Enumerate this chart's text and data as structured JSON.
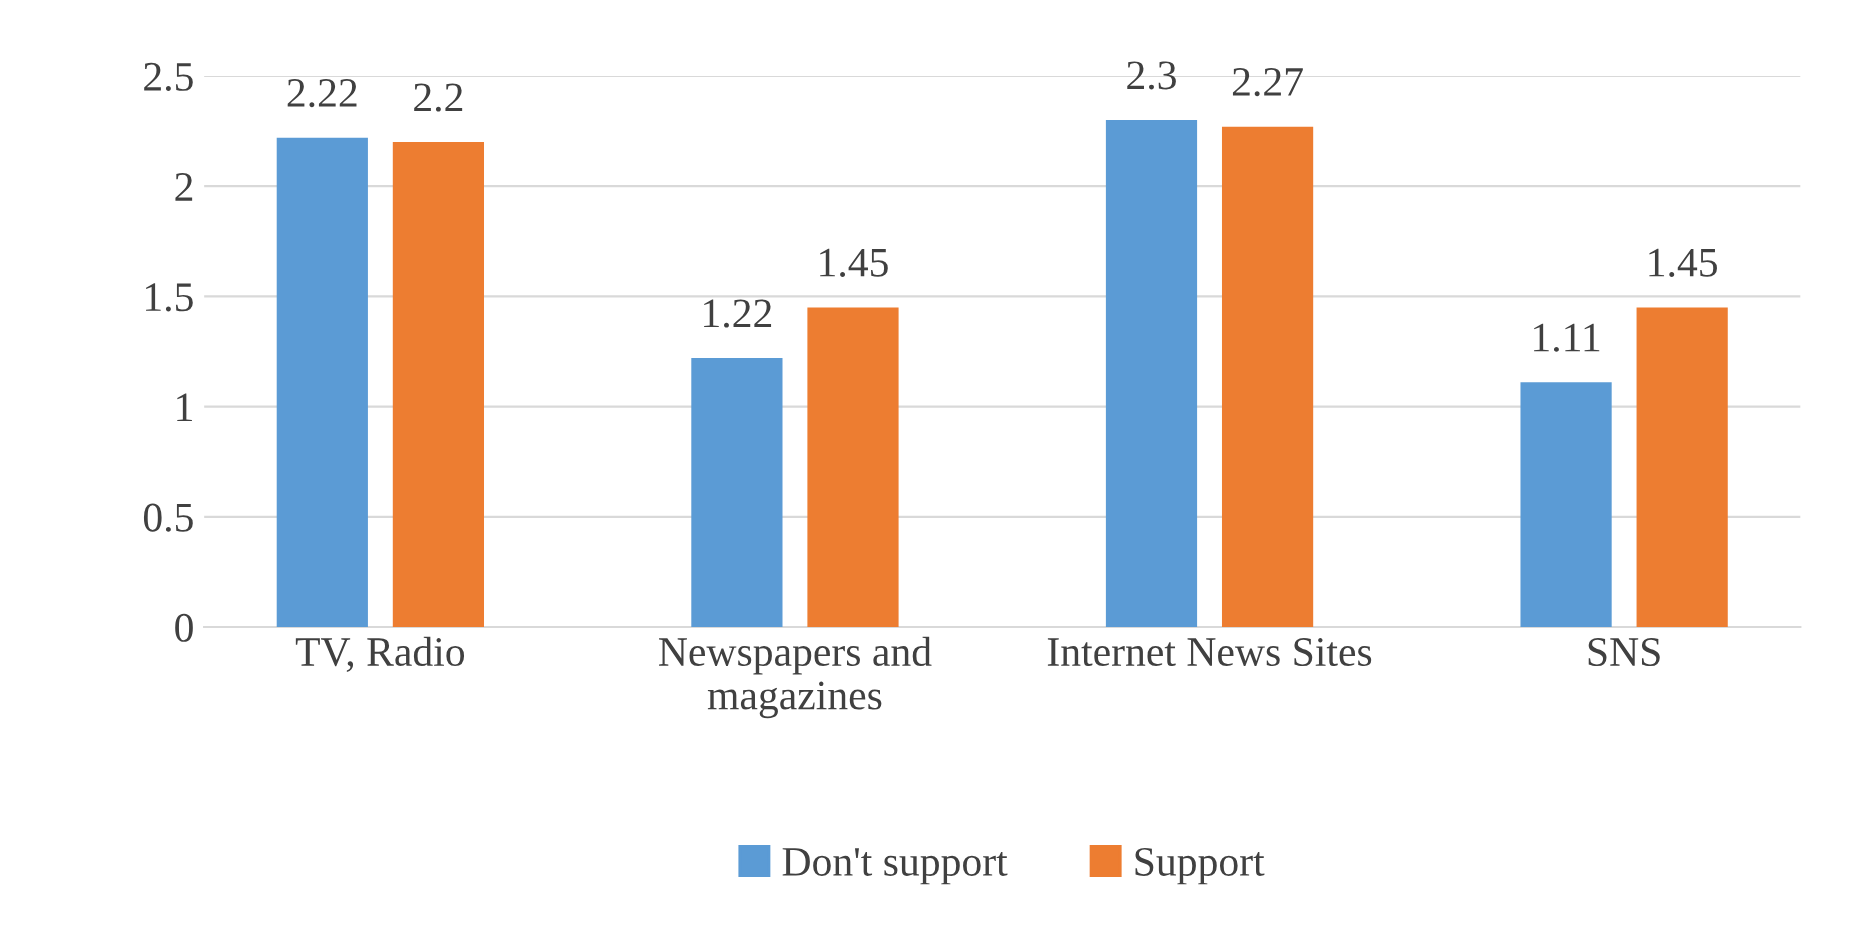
{
  "chart_data": {
    "type": "bar",
    "categories": [
      "TV, Radio",
      "Newspapers and\nmagazines",
      "Internet News Sites",
      "SNS"
    ],
    "series": [
      {
        "name": "Don't support",
        "color": "#5b9bd5",
        "values": [
          2.22,
          1.22,
          2.3,
          1.11
        ]
      },
      {
        "name": "Support",
        "color": "#ed7d31",
        "values": [
          2.2,
          1.45,
          2.27,
          1.45
        ]
      }
    ],
    "ylim": [
      0,
      2.5
    ],
    "yticks": [
      0,
      0.5,
      1,
      1.5,
      2,
      2.5
    ],
    "grid": "y",
    "legend": "bottom",
    "data_labels": true
  }
}
